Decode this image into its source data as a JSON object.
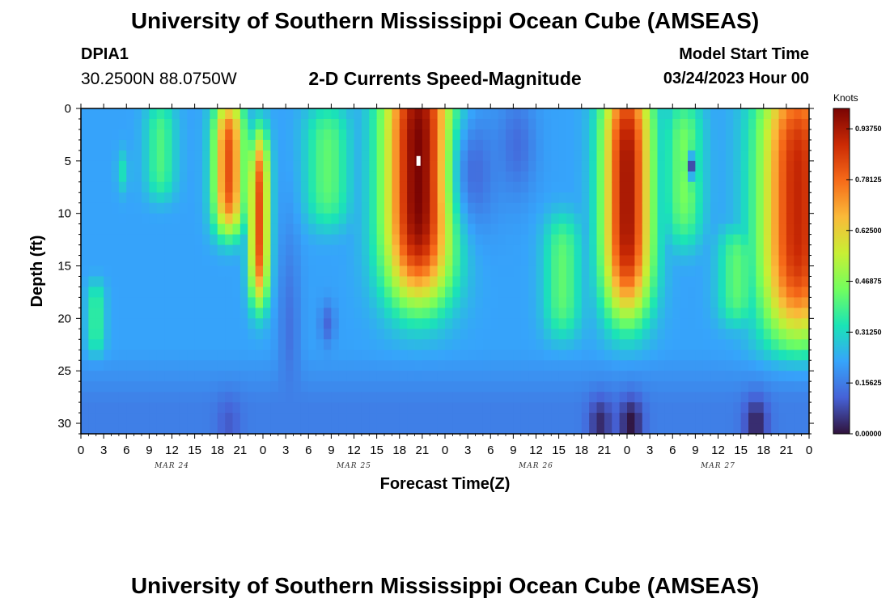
{
  "header": {
    "title": "University of Southern Mississippi Ocean Cube (AMSEAS)",
    "station_id": "DPIA1",
    "coords": "30.2500N  88.0750W",
    "plot_title": "2-D Currents Speed-Magnitude",
    "model_start_label": "Model Start Time",
    "model_start_value": "03/24/2023 Hour 00"
  },
  "footer": {
    "title": "University of Southern Mississippi Ocean Cube (AMSEAS)"
  },
  "chart_data": {
    "type": "heatmap",
    "title": "2-D Currents Speed-Magnitude",
    "xlabel": "Forecast Time(Z)",
    "ylabel": "Depth (ft)",
    "x_unit": "forecast hour from model start",
    "xlim": [
      0,
      96
    ],
    "ylim": [
      0,
      31
    ],
    "y_inverted": true,
    "x_tick_labels": [
      "0",
      "3",
      "6",
      "9",
      "12",
      "15",
      "18",
      "21",
      "0",
      "3",
      "6",
      "9",
      "12",
      "15",
      "18",
      "21",
      "0",
      "3",
      "6",
      "9",
      "12",
      "15",
      "18",
      "21",
      "0",
      "3",
      "6",
      "9",
      "12",
      "15",
      "18",
      "21",
      "0"
    ],
    "y_ticks": [
      0,
      5,
      10,
      15,
      20,
      25,
      30
    ],
    "day_labels": [
      {
        "label": "MAR 24",
        "hour": 12
      },
      {
        "label": "MAR 25",
        "hour": 36
      },
      {
        "label": "MAR 26",
        "hour": 60
      },
      {
        "label": "MAR 27",
        "hour": 84
      }
    ],
    "colorbar": {
      "unit": "Knots",
      "min": 0.0,
      "max": 1.0,
      "tick_values": [
        0.0,
        0.15625,
        0.3125,
        0.46875,
        0.625,
        0.78125,
        0.9375
      ],
      "tick_labels": [
        "0.00000",
        "0.15625",
        "0.31250",
        "0.46875",
        "0.62500",
        "0.78125",
        "0.93750"
      ],
      "colors": [
        "#30123b",
        "#4662d7",
        "#36a4fb",
        "#1ae4b6",
        "#72fe5e",
        "#c8ef34",
        "#faba39",
        "#f66b19",
        "#cb2a04",
        "#7a0403"
      ]
    },
    "max_speed_marker": {
      "hour": 44.5,
      "depth": 5
    },
    "surface_jets": [
      {
        "hour": 19.5,
        "depth": 5.5,
        "peak": 0.82,
        "hour_halfwidth": 2.0,
        "depth_halfwidth": 5.5
      },
      {
        "hour": 23.5,
        "depth": 10.5,
        "peak": 0.82,
        "hour_halfwidth": 1.3,
        "depth_halfwidth": 7.0
      },
      {
        "hour": 44.5,
        "depth": 6.0,
        "peak": 1.0,
        "hour_halfwidth": 4.5,
        "depth_halfwidth": 10.5
      },
      {
        "hour": 72.0,
        "depth": 8.0,
        "peak": 0.95,
        "hour_halfwidth": 3.2,
        "depth_halfwidth": 10.0
      },
      {
        "hour": 94.5,
        "depth": 9.0,
        "peak": 0.9,
        "hour_halfwidth": 5.0,
        "depth_halfwidth": 11.0
      },
      {
        "hour": 10.5,
        "depth": 4.0,
        "peak": 0.4,
        "hour_halfwidth": 2.0,
        "depth_halfwidth": 4.0
      },
      {
        "hour": 32.5,
        "depth": 5.5,
        "peak": 0.42,
        "hour_halfwidth": 3.0,
        "depth_halfwidth": 5.0
      },
      {
        "hour": 79.5,
        "depth": 6.0,
        "peak": 0.45,
        "hour_halfwidth": 2.5,
        "depth_halfwidth": 6.0
      },
      {
        "hour": 63.5,
        "depth": 16.0,
        "peak": 0.42,
        "hour_halfwidth": 2.5,
        "depth_halfwidth": 5.0
      },
      {
        "hour": 86.5,
        "depth": 16.0,
        "peak": 0.42,
        "hour_halfwidth": 2.5,
        "depth_halfwidth": 4.0
      },
      {
        "hour": 2.0,
        "depth": 20.0,
        "peak": 0.38,
        "hour_halfwidth": 1.2,
        "depth_halfwidth": 3.0
      }
    ],
    "weak_zones": [
      {
        "hour": 27.5,
        "depth": 21.0,
        "peak": 0.14,
        "hour_halfwidth": 1.5,
        "depth_halfwidth": 10.0
      },
      {
        "hour": 52.0,
        "depth": 6.0,
        "peak": 0.13,
        "hour_halfwidth": 3.0,
        "depth_halfwidth": 6.0
      },
      {
        "hour": 57.5,
        "depth": 3.5,
        "peak": 0.13,
        "hour_halfwidth": 2.5,
        "depth_halfwidth": 5.0
      },
      {
        "hour": 80.5,
        "depth": 5.5,
        "peak": 0.08,
        "hour_halfwidth": 0.6,
        "depth_halfwidth": 1.2
      },
      {
        "hour": 5.5,
        "depth": 6.0,
        "peak": 0.33,
        "hour_halfwidth": 0.8,
        "depth_halfwidth": 2.0
      },
      {
        "hour": 32.5,
        "depth": 20.5,
        "peak": 0.12,
        "hour_halfwidth": 1.0,
        "depth_halfwidth": 2.0
      }
    ],
    "bottom_minima": [
      {
        "hour": 19.5,
        "depth": 30.0,
        "value": 0.1
      },
      {
        "hour": 68.5,
        "depth": 30.0,
        "value": 0.03
      },
      {
        "hour": 72.5,
        "depth": 30.0,
        "value": 0.0
      },
      {
        "hour": 89.0,
        "depth": 30.0,
        "value": 0.02
      }
    ],
    "background_speed": 0.22
  }
}
